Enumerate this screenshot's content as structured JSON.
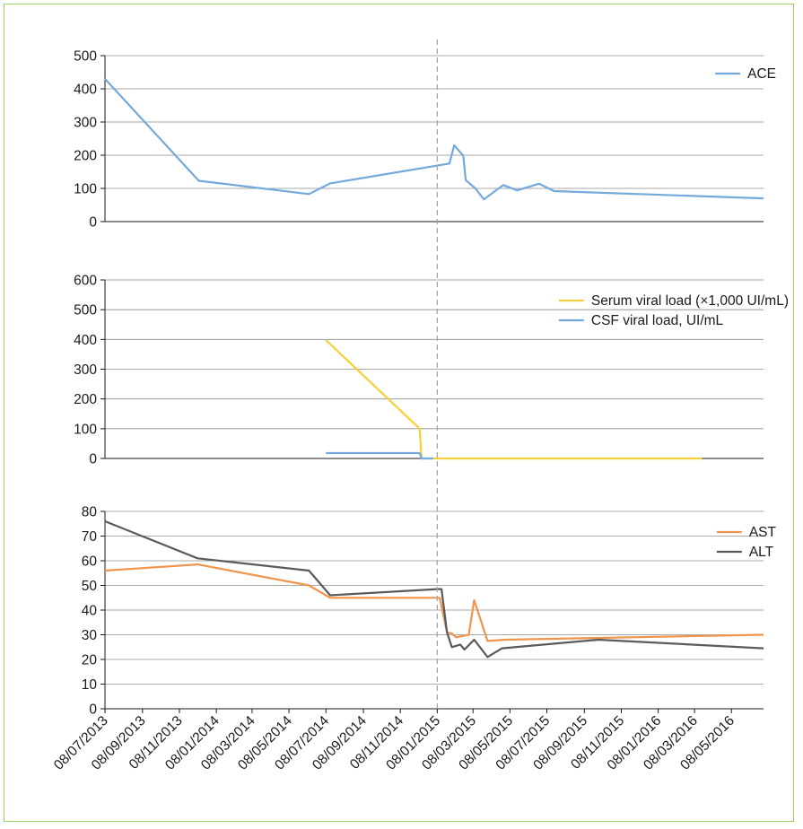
{
  "colors": {
    "ace": "#74a9dc",
    "serum": "#f5cf3c",
    "csf": "#74a9dc",
    "ast": "#f0954c",
    "alt": "#5a5a5a",
    "grid": "#8c8c8c",
    "axis": "#1a1a1a",
    "marker": "#a6a6a6",
    "frame": "#9ccc65"
  },
  "chart_data": [
    {
      "type": "line",
      "ylim": [
        0,
        500
      ],
      "yticks": [
        "0",
        "100",
        "200",
        "300",
        "400",
        "500"
      ],
      "xlim": [
        "2013-07-08",
        "2016-06-30"
      ],
      "grid": true,
      "legend_position": "top-right",
      "series": [
        {
          "name": "ACE",
          "color_key": "ace",
          "points": [
            [
              "2013-07-08",
              430
            ],
            [
              "2013-12-10",
              123
            ],
            [
              "2014-06-10",
              83
            ],
            [
              "2014-07-15",
              115
            ],
            [
              "2015-01-28",
              175
            ],
            [
              "2015-02-05",
              230
            ],
            [
              "2015-02-20",
              198
            ],
            [
              "2015-02-24",
              125
            ],
            [
              "2015-03-12",
              100
            ],
            [
              "2015-03-26",
              67
            ],
            [
              "2015-04-27",
              110
            ],
            [
              "2015-05-20",
              94
            ],
            [
              "2015-06-25",
              114
            ],
            [
              "2015-07-20",
              92
            ],
            [
              "2016-06-30",
              70
            ]
          ]
        }
      ]
    },
    {
      "type": "line",
      "ylim": [
        0,
        600
      ],
      "yticks": [
        "0",
        "100",
        "200",
        "300",
        "400",
        "500",
        "600"
      ],
      "xlim": [
        "2013-07-08",
        "2016-06-30"
      ],
      "grid": true,
      "legend_position": "top-right",
      "series": [
        {
          "name": "Serum viral load (×1,000 UI/mL)",
          "color_key": "serum",
          "points": [
            [
              "2014-07-08",
              398
            ],
            [
              "2014-12-10",
              100
            ],
            [
              "2014-12-13",
              0
            ],
            [
              "2016-03-20",
              0
            ]
          ]
        },
        {
          "name": "CSF viral load, UI/mL",
          "color_key": "csf",
          "points": [
            [
              "2014-07-08",
              18
            ],
            [
              "2014-12-10",
              18
            ],
            [
              "2014-12-13",
              0
            ],
            [
              "2015-01-01",
              0
            ]
          ]
        }
      ]
    },
    {
      "type": "line",
      "ylim": [
        0,
        80
      ],
      "yticks": [
        "0",
        "10",
        "20",
        "30",
        "40",
        "50",
        "60",
        "70",
        "80"
      ],
      "xlim": [
        "2013-07-08",
        "2016-06-30"
      ],
      "grid": true,
      "legend_position": "top-right",
      "xticks": [
        "08/07/2013",
        "08/09/2013",
        "08/11/2013",
        "08/01/2014",
        "08/03/2014",
        "08/05/2014",
        "08/07/2014",
        "08/09/2014",
        "08/11/2014",
        "08/01/2015",
        "08/03/2015",
        "08/05/2015",
        "08/07/2015",
        "08/09/2015",
        "08/11/2015",
        "08/01/2016",
        "08/03/2016",
        "08/05/2016"
      ],
      "series": [
        {
          "name": "AST",
          "color_key": "ast",
          "points": [
            [
              "2013-07-08",
              56
            ],
            [
              "2013-12-08",
              58.5
            ],
            [
              "2014-06-10",
              50
            ],
            [
              "2014-07-15",
              45
            ],
            [
              "2015-01-12",
              45
            ],
            [
              "2015-01-24",
              31
            ],
            [
              "2015-02-01",
              30.5
            ],
            [
              "2015-02-08",
              29
            ],
            [
              "2015-03-01",
              30
            ],
            [
              "2015-03-10",
              44
            ],
            [
              "2015-04-01",
              27.5
            ],
            [
              "2015-05-01",
              28
            ],
            [
              "2016-06-30",
              30
            ]
          ]
        },
        {
          "name": "ALT",
          "color_key": "alt",
          "points": [
            [
              "2013-07-08",
              76
            ],
            [
              "2013-12-08",
              61
            ],
            [
              "2014-06-10",
              56
            ],
            [
              "2014-07-15",
              46
            ],
            [
              "2015-01-08",
              48.5
            ],
            [
              "2015-01-15",
              48.5
            ],
            [
              "2015-01-24",
              31
            ],
            [
              "2015-02-01",
              25
            ],
            [
              "2015-02-15",
              26
            ],
            [
              "2015-02-22",
              24
            ],
            [
              "2015-03-10",
              28
            ],
            [
              "2015-04-01",
              21
            ],
            [
              "2015-04-25",
              24.5
            ],
            [
              "2015-10-01",
              28
            ],
            [
              "2016-06-30",
              24.5
            ]
          ]
        }
      ]
    }
  ],
  "marker_date": "2015-01-08"
}
